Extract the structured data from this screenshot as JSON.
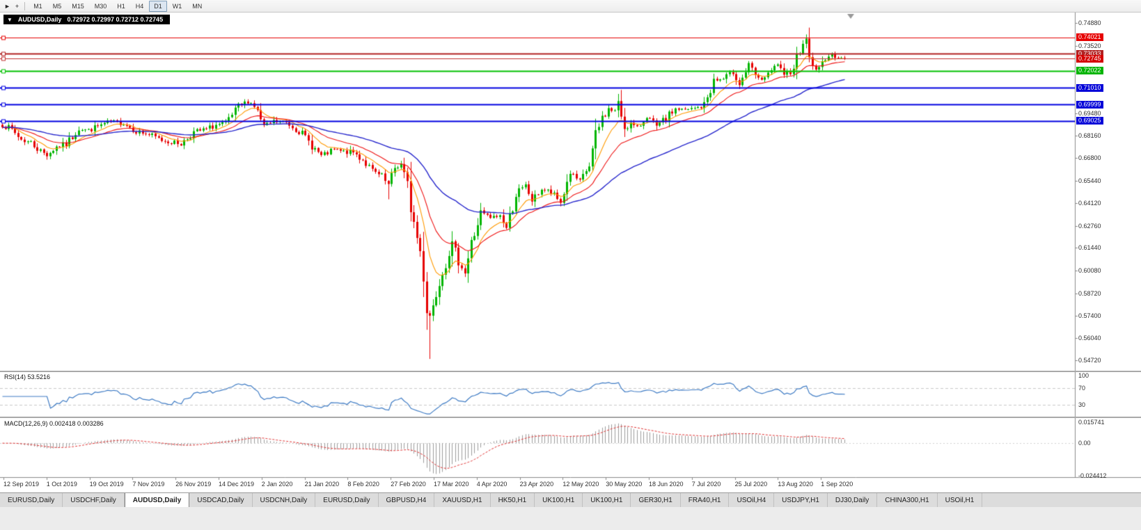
{
  "toolbar": {
    "icons": [
      {
        "name": "cursor-icon",
        "glyph": "►"
      },
      {
        "name": "crosshair-icon",
        "glyph": "+"
      }
    ],
    "timeframes": [
      {
        "label": "M1"
      },
      {
        "label": "M5"
      },
      {
        "label": "M15"
      },
      {
        "label": "M30"
      },
      {
        "label": "H1"
      },
      {
        "label": "H4"
      },
      {
        "label": "D1",
        "active": true
      },
      {
        "label": "W1"
      },
      {
        "label": "MN"
      }
    ]
  },
  "chart_title": {
    "dropdown_glyph": "▼",
    "symbol": "AUDUSD,Daily",
    "ohlc": "0.72972 0.72997 0.72712 0.72745"
  },
  "y_axis": {
    "static_labels": [
      0.7488,
      0.7352,
      0.6948,
      0.6816,
      0.668,
      0.6544,
      0.6412,
      0.6276,
      0.6144,
      0.6008,
      0.5872,
      0.574,
      0.5604,
      0.5472
    ]
  },
  "x_axis": {
    "labels": [
      "12 Sep 2019",
      "1 Oct 2019",
      "19 Oct 2019",
      "7 Nov 2019",
      "26 Nov 2019",
      "14 Dec 2019",
      "2 Jan 2020",
      "21 Jan 2020",
      "8 Feb 2020",
      "27 Feb 2020",
      "17 Mar 2020",
      "4 Apr 2020",
      "23 Apr 2020",
      "12 May 2020",
      "30 May 2020",
      "18 Jun 2020",
      "7 Jul 2020",
      "25 Jul 2020",
      "13 Aug 2020",
      "1 Sep 2020"
    ]
  },
  "price_lines": [
    {
      "price": 0.74021,
      "label": "0.74021",
      "color": "#e60000",
      "bg": "#e60000",
      "width": 1,
      "role": "resistance"
    },
    {
      "price": 0.73033,
      "label": "0.73033",
      "color": "#b22222",
      "bg": "#b22222",
      "width": 2,
      "role": "resistance"
    },
    {
      "price": 0.72745,
      "label": "0.72745",
      "color": "#c03030",
      "bg": "#d40000",
      "width": 1,
      "role": "bid"
    },
    {
      "price": 0.72022,
      "label": "0.72022",
      "color": "#00c000",
      "bg": "#00b400",
      "width": 2,
      "role": "support"
    },
    {
      "price": 0.7101,
      "label": "0.71010",
      "color": "#0000e0",
      "bg": "#0000d8",
      "width": 2,
      "role": "support"
    },
    {
      "price": 0.69999,
      "label": "0.69999",
      "color": "#0000e0",
      "bg": "#0000d8",
      "width": 2,
      "role": "support"
    },
    {
      "price": 0.69025,
      "label": "0.69025",
      "color": "#0000e0",
      "bg": "#0000d8",
      "width": 2,
      "role": "support"
    }
  ],
  "rsi_panel": {
    "label": "RSI(14) 53.5216",
    "period": 14,
    "color": "#3e7bc4",
    "levels": [
      {
        "text": "100",
        "v": 100
      },
      {
        "text": "70",
        "v": 70
      },
      {
        "text": "30",
        "v": 30
      }
    ],
    "dashed_levels": [
      70,
      30
    ]
  },
  "macd_panel": {
    "label": "MACD(12,26,9) 0.002418 0.003286",
    "fast": 12,
    "slow": 26,
    "signal": 9,
    "hist_color": "#9c9c9c",
    "signal_color": "#e03030",
    "axis_labels": [
      {
        "text": "0.015741",
        "v": 0.015741
      },
      {
        "text": "0.00",
        "v": 0
      },
      {
        "text": "-0.024412",
        "v": -0.024412
      }
    ]
  },
  "colors": {
    "up": "#00b400",
    "down": "#e60000",
    "axis_text": "#2e2e2e",
    "panel_bg": "#ffffff"
  },
  "moving_averages": [
    {
      "period": 9,
      "color": "#ff9900"
    },
    {
      "period": 21,
      "color": "#ee1111"
    },
    {
      "period": 55,
      "color": "#2626cc"
    }
  ],
  "tabs": [
    {
      "label": "EURUSD,Daily"
    },
    {
      "label": "USDCHF,Daily"
    },
    {
      "label": "AUDUSD,Daily",
      "active": true
    },
    {
      "label": "USDCAD,Daily"
    },
    {
      "label": "USDCNH,Daily"
    },
    {
      "label": "EURUSD,Daily"
    },
    {
      "label": "GBPUSD,H4"
    },
    {
      "label": "XAUUSD,H1"
    },
    {
      "label": "HK50,H1"
    },
    {
      "label": "UK100,H1"
    },
    {
      "label": "UK100,H1"
    },
    {
      "label": "GER30,H1"
    },
    {
      "label": "FRA40,H1"
    },
    {
      "label": "USOil,H4"
    },
    {
      "label": "USDJPY,H1"
    },
    {
      "label": "DJ30,Daily"
    },
    {
      "label": "CHINA300,H1"
    },
    {
      "label": "USOil,H1"
    }
  ],
  "chart_data": {
    "type": "candlestick",
    "symbol": "AUDUSD",
    "period": "Daily",
    "title": "AUDUSD,Daily",
    "ohlc_current": {
      "open": 0.72972,
      "high": 0.72997,
      "low": 0.72712,
      "close": 0.72745
    },
    "ylim": [
      0.5472,
      0.7488
    ],
    "x_start": "12 Sep 2019",
    "x_end": "16 Sep 2020",
    "bar_count": 265,
    "horizontal_levels": [
      0.74021,
      0.73033,
      0.72745,
      0.72022,
      0.7101,
      0.69999,
      0.69025
    ],
    "close_anchors": [
      [
        0,
        0.688
      ],
      [
        3,
        0.6848
      ],
      [
        6,
        0.6792
      ],
      [
        9,
        0.6772
      ],
      [
        12,
        0.6722
      ],
      [
        14,
        0.67
      ],
      [
        17,
        0.6748
      ],
      [
        20,
        0.6762
      ],
      [
        24,
        0.6858
      ],
      [
        27,
        0.6846
      ],
      [
        31,
        0.6878
      ],
      [
        34,
        0.6896
      ],
      [
        38,
        0.689
      ],
      [
        42,
        0.6842
      ],
      [
        46,
        0.682
      ],
      [
        50,
        0.6788
      ],
      [
        53,
        0.6776
      ],
      [
        56,
        0.6766
      ],
      [
        60,
        0.6834
      ],
      [
        64,
        0.6852
      ],
      [
        67,
        0.6878
      ],
      [
        70,
        0.6884
      ],
      [
        74,
        0.6984
      ],
      [
        77,
        0.702
      ],
      [
        79,
        0.6996
      ],
      [
        82,
        0.6866
      ],
      [
        85,
        0.6898
      ],
      [
        89,
        0.6893
      ],
      [
        93,
        0.6845
      ],
      [
        97,
        0.6756
      ],
      [
        100,
        0.6692
      ],
      [
        104,
        0.673
      ],
      [
        107,
        0.6716
      ],
      [
        110,
        0.6714
      ],
      [
        113,
        0.6672
      ],
      [
        116,
        0.66
      ],
      [
        119,
        0.6566
      ],
      [
        121,
        0.6516
      ],
      [
        123,
        0.6622
      ],
      [
        125,
        0.664
      ],
      [
        127,
        0.65
      ],
      [
        129,
        0.6292
      ],
      [
        131,
        0.612
      ],
      [
        132,
        0.5992
      ],
      [
        133,
        0.5782
      ],
      [
        134,
        0.5742
      ],
      [
        135,
        0.5802
      ],
      [
        137,
        0.5964
      ],
      [
        139,
        0.6062
      ],
      [
        141,
        0.6172
      ],
      [
        143,
        0.6072
      ],
      [
        145,
        0.5996
      ],
      [
        147,
        0.6166
      ],
      [
        150,
        0.6352
      ],
      [
        153,
        0.6322
      ],
      [
        156,
        0.6336
      ],
      [
        158,
        0.6262
      ],
      [
        161,
        0.6466
      ],
      [
        164,
        0.6512
      ],
      [
        166,
        0.6426
      ],
      [
        169,
        0.6496
      ],
      [
        172,
        0.6472
      ],
      [
        175,
        0.6416
      ],
      [
        178,
        0.6596
      ],
      [
        181,
        0.6536
      ],
      [
        184,
        0.6636
      ],
      [
        186,
        0.6802
      ],
      [
        188,
        0.6922
      ],
      [
        190,
        0.6972
      ],
      [
        192,
        0.6962
      ],
      [
        193,
        0.7002
      ],
      [
        195,
        0.6866
      ],
      [
        197,
        0.6886
      ],
      [
        199,
        0.6856
      ],
      [
        202,
        0.6932
      ],
      [
        205,
        0.6866
      ],
      [
        208,
        0.6916
      ],
      [
        211,
        0.6976
      ],
      [
        214,
        0.6966
      ],
      [
        217,
        0.6976
      ],
      [
        220,
        0.6996
      ],
      [
        223,
        0.7142
      ],
      [
        226,
        0.7152
      ],
      [
        229,
        0.7196
      ],
      [
        231,
        0.7122
      ],
      [
        234,
        0.7236
      ],
      [
        237,
        0.7146
      ],
      [
        240,
        0.7172
      ],
      [
        243,
        0.7246
      ],
      [
        245,
        0.7162
      ],
      [
        248,
        0.7236
      ],
      [
        251,
        0.7376
      ],
      [
        252,
        0.7372
      ],
      [
        254,
        0.7226
      ],
      [
        256,
        0.7212
      ],
      [
        258,
        0.7286
      ],
      [
        260,
        0.7292
      ],
      [
        262,
        0.729
      ],
      [
        264,
        0.72745
      ]
    ],
    "wick_overrides": [
      [
        14,
        null,
        0.6671
      ],
      [
        77,
        0.7032,
        null
      ],
      [
        121,
        null,
        0.6434
      ],
      [
        134,
        null,
        0.548
      ],
      [
        193,
        0.7064,
        null
      ],
      [
        252,
        0.7402,
        null
      ],
      [
        260,
        0.7312,
        null
      ]
    ]
  }
}
